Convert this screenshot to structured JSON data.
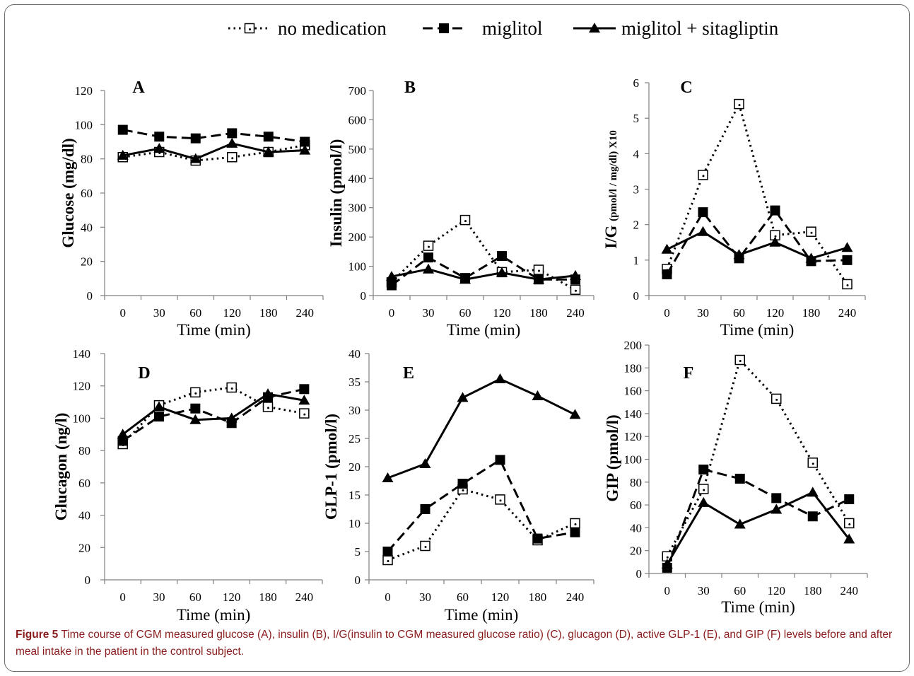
{
  "legend": [
    {
      "label": "no medication",
      "style": "dotted",
      "marker": "open-square"
    },
    {
      "label": "miglitol",
      "style": "dashed",
      "marker": "filled-square"
    },
    {
      "label": "miglitol + sitagliptin",
      "style": "solid",
      "marker": "filled-triangle"
    }
  ],
  "caption": {
    "label": "Figure 5",
    "text": "Time course of CGM measured glucose (A), insulin (B), I/G(insulin to CGM measured glucose ratio) (C), glucagon (D), active GLP-1 (E), and GIP (F) levels before and after meal intake in the patient in the control subject."
  },
  "chart_data": [
    {
      "type": "line",
      "panel": "A",
      "categories": [
        "0",
        "30",
        "60",
        "120",
        "180",
        "240"
      ],
      "xlabel": "Time (min)",
      "ylabel": "Glucose (mg/dl)",
      "ylim": [
        0,
        120
      ],
      "yticks": [
        0,
        20,
        40,
        60,
        80,
        100,
        120
      ],
      "series": [
        {
          "name": "no medication",
          "values": [
            81,
            84,
            79,
            81,
            84,
            88
          ]
        },
        {
          "name": "miglitol",
          "values": [
            97,
            93,
            92,
            95,
            93,
            90
          ]
        },
        {
          "name": "miglitol + sitagliptin",
          "values": [
            82,
            86,
            80,
            89,
            84,
            85
          ]
        }
      ]
    },
    {
      "type": "line",
      "panel": "B",
      "categories": [
        "0",
        "30",
        "60",
        "120",
        "180",
        "240"
      ],
      "xlabel": "Time (min)",
      "ylabel": "Insulin (pmol/l)",
      "ylim": [
        0,
        700
      ],
      "yticks": [
        0,
        100,
        200,
        300,
        400,
        500,
        600,
        700
      ],
      "series": [
        {
          "name": "no medication",
          "values": [
            45,
            170,
            258,
            80,
            88,
            20
          ]
        },
        {
          "name": "miglitol",
          "values": [
            35,
            130,
            60,
            135,
            55,
            55
          ]
        },
        {
          "name": "miglitol + sitagliptin",
          "values": [
            65,
            90,
            55,
            78,
            55,
            68
          ]
        }
      ]
    },
    {
      "type": "line",
      "panel": "C",
      "categories": [
        "0",
        "30",
        "60",
        "120",
        "180",
        "240"
      ],
      "xlabel": "Time (min)",
      "ylabel": "I/G",
      "ylabel_small": "(pmol/l / mg/dl) X10",
      "ylim": [
        0,
        6
      ],
      "yticks": [
        0,
        1,
        2,
        3,
        4,
        5,
        6
      ],
      "series": [
        {
          "name": "no medication",
          "values": [
            0.75,
            3.4,
            5.4,
            1.7,
            1.8,
            0.32
          ]
        },
        {
          "name": "miglitol",
          "values": [
            0.6,
            2.35,
            1.05,
            2.4,
            0.97,
            1.0
          ]
        },
        {
          "name": "miglitol + sitagliptin",
          "values": [
            1.3,
            1.8,
            1.15,
            1.5,
            1.05,
            1.35
          ]
        }
      ]
    },
    {
      "type": "line",
      "panel": "D",
      "categories": [
        "0",
        "30",
        "60",
        "120",
        "180",
        "240"
      ],
      "xlabel": "Time (min)",
      "ylabel": "Glucagon (ng/l)",
      "ylim": [
        0,
        140
      ],
      "yticks": [
        0,
        20,
        40,
        60,
        80,
        100,
        120,
        140
      ],
      "series": [
        {
          "name": "no medication",
          "values": [
            84,
            108,
            116,
            119,
            107,
            103
          ]
        },
        {
          "name": "miglitol",
          "values": [
            86,
            101,
            106,
            97,
            113,
            118
          ]
        },
        {
          "name": "miglitol + sitagliptin",
          "values": [
            90,
            107,
            99,
            100,
            115,
            111
          ]
        }
      ]
    },
    {
      "type": "line",
      "panel": "E",
      "categories": [
        "0",
        "30",
        "60",
        "120",
        "180",
        "240"
      ],
      "xlabel": "Time (min)",
      "ylabel": "GLP-1 (pmol/l)",
      "ylim": [
        0,
        40
      ],
      "yticks": [
        0,
        5,
        10,
        15,
        20,
        25,
        30,
        35,
        40
      ],
      "series": [
        {
          "name": "no medication",
          "values": [
            3.5,
            6,
            16,
            14.2,
            7,
            10
          ]
        },
        {
          "name": "miglitol",
          "values": [
            5,
            12.5,
            17,
            21.2,
            7.3,
            8.4
          ]
        },
        {
          "name": "miglitol + sitagliptin",
          "values": [
            18,
            20.5,
            32.2,
            35.5,
            32.5,
            29.2
          ]
        }
      ]
    },
    {
      "type": "line",
      "panel": "F",
      "categories": [
        "0",
        "30",
        "60",
        "120",
        "180",
        "240"
      ],
      "xlabel": "Time (min)",
      "ylabel": "GIP (pmol/l)",
      "ylim": [
        0,
        200
      ],
      "yticks": [
        0,
        20,
        40,
        60,
        80,
        100,
        120,
        140,
        160,
        180,
        200
      ],
      "series": [
        {
          "name": "no medication",
          "values": [
            15,
            74,
            187,
            153,
            97,
            44
          ]
        },
        {
          "name": "miglitol",
          "values": [
            5,
            91,
            83,
            66,
            50,
            65
          ]
        },
        {
          "name": "miglitol + sitagliptin",
          "values": [
            8,
            62,
            43,
            56,
            71,
            30
          ]
        }
      ]
    }
  ]
}
